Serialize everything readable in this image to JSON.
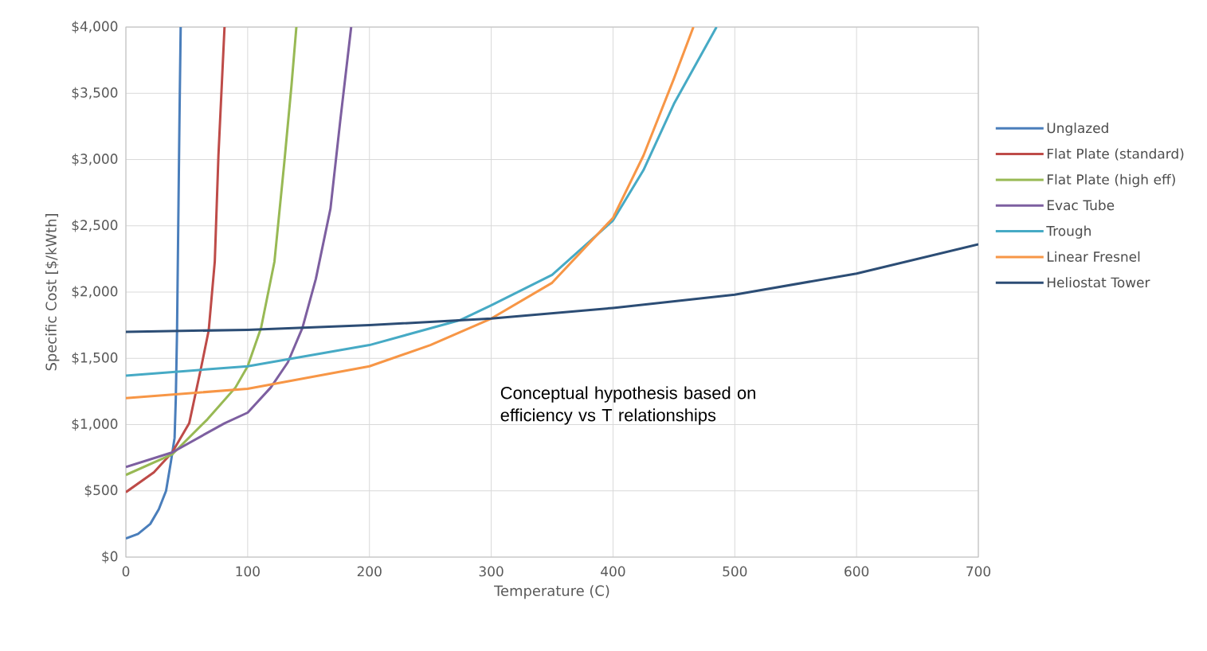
{
  "chart_data": {
    "type": "line",
    "xlabel": "Temperature (C)",
    "ylabel": "Specific Cost [$/kWth]",
    "xlim": [
      0,
      700
    ],
    "ylim": [
      0,
      4000
    ],
    "xticks": [
      0,
      100,
      200,
      300,
      400,
      500,
      600,
      700
    ],
    "yticks": [
      {
        "value": 0,
        "label": "$0"
      },
      {
        "value": 500,
        "label": "$500"
      },
      {
        "value": 1000,
        "label": "$1,000"
      },
      {
        "value": 1500,
        "label": "$1,500"
      },
      {
        "value": 2000,
        "label": "$2,000"
      },
      {
        "value": 2500,
        "label": "$2,500"
      },
      {
        "value": 3000,
        "label": "$3,000"
      },
      {
        "value": 3500,
        "label": "$3,500"
      },
      {
        "value": 4000,
        "label": "$4,000"
      }
    ],
    "grid": true,
    "legend": "right",
    "marker": "none",
    "line_style": "solid",
    "annotations": [
      "Conceptual hypothesis based on efficiency vs T relationships"
    ],
    "series": [
      {
        "name": "Unglazed",
        "color": "#4a7ebb",
        "x": [
          0,
          10,
          16,
          20,
          27,
          33,
          37,
          40,
          41,
          42,
          43,
          44,
          45
        ],
        "values": [
          140,
          175,
          220,
          250,
          360,
          500,
          720,
          900,
          1200,
          1700,
          2500,
          3300,
          4000
        ]
      },
      {
        "name": "Flat Plate (standard)",
        "color": "#be4b48",
        "x": [
          0,
          23,
          38,
          52,
          62,
          68,
          73,
          76,
          81
        ],
        "values": [
          490,
          640,
          790,
          1010,
          1440,
          1710,
          2230,
          3030,
          4000
        ]
      },
      {
        "name": "Flat Plate (high eff)",
        "color": "#98b954",
        "x": [
          0,
          38,
          67,
          90,
          100,
          111,
          122,
          130,
          136,
          140
        ],
        "values": [
          620,
          775,
          1040,
          1280,
          1440,
          1730,
          2230,
          2970,
          3560,
          4000
        ]
      },
      {
        "name": "Evac Tube",
        "color": "#7d5fa0",
        "x": [
          0,
          38,
          81,
          100,
          119,
          133,
          145,
          156,
          168,
          176,
          185
        ],
        "values": [
          680,
          790,
          1010,
          1090,
          1280,
          1470,
          1730,
          2100,
          2630,
          3290,
          4000
        ]
      },
      {
        "name": "Trough",
        "color": "#46aac5",
        "x": [
          0,
          100,
          200,
          275,
          300,
          350,
          400,
          425,
          450,
          485
        ],
        "values": [
          1370,
          1440,
          1600,
          1790,
          1900,
          2130,
          2540,
          2920,
          3420,
          4000
        ]
      },
      {
        "name": "Linear Fresnel",
        "color": "#f79646",
        "x": [
          0,
          100,
          200,
          250,
          300,
          350,
          400,
          425,
          450,
          466
        ],
        "values": [
          1200,
          1270,
          1440,
          1600,
          1800,
          2070,
          2560,
          3030,
          3610,
          4000
        ]
      },
      {
        "name": "Heliostat Tower",
        "color": "#2c4d75",
        "x": [
          0,
          100,
          200,
          300,
          400,
          500,
          600,
          700
        ],
        "values": [
          1700,
          1715,
          1750,
          1800,
          1880,
          1980,
          2140,
          2360
        ]
      }
    ]
  }
}
